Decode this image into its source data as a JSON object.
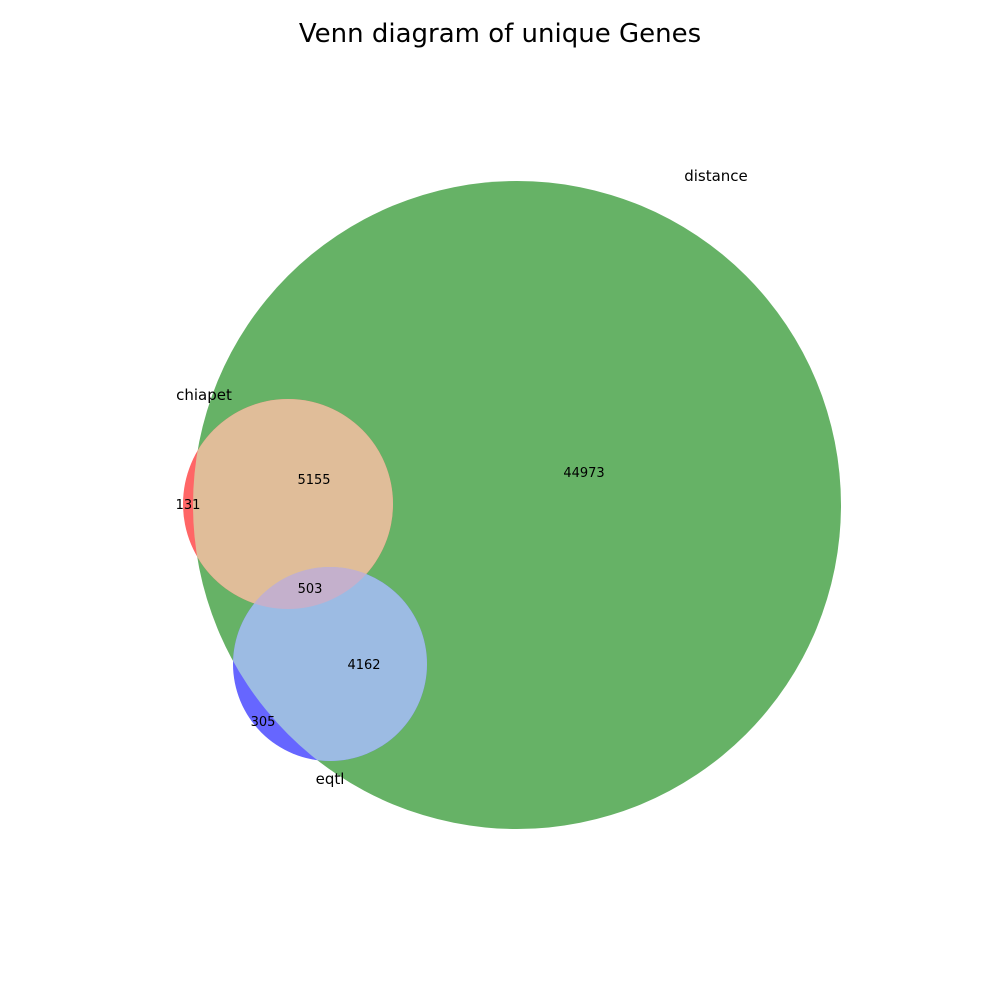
{
  "title": "Venn diagram of unique Genes",
  "colors": {
    "chiapet": "#ff6666",
    "distance": "#66b266",
    "eqtl": "#6666ff",
    "chiapet_distance": "#e0bd99",
    "distance_eqtl": "#9cbbe3",
    "all_three": "#c4b0cc"
  },
  "sets": {
    "chiapet": "chiapet",
    "distance": "distance",
    "eqtl": "eqtl"
  },
  "regions": {
    "chiapet_only": "131",
    "distance_only": "44973",
    "eqtl_only": "305",
    "chiapet_distance": "5155",
    "distance_eqtl": "4162",
    "all_three": "503"
  }
}
